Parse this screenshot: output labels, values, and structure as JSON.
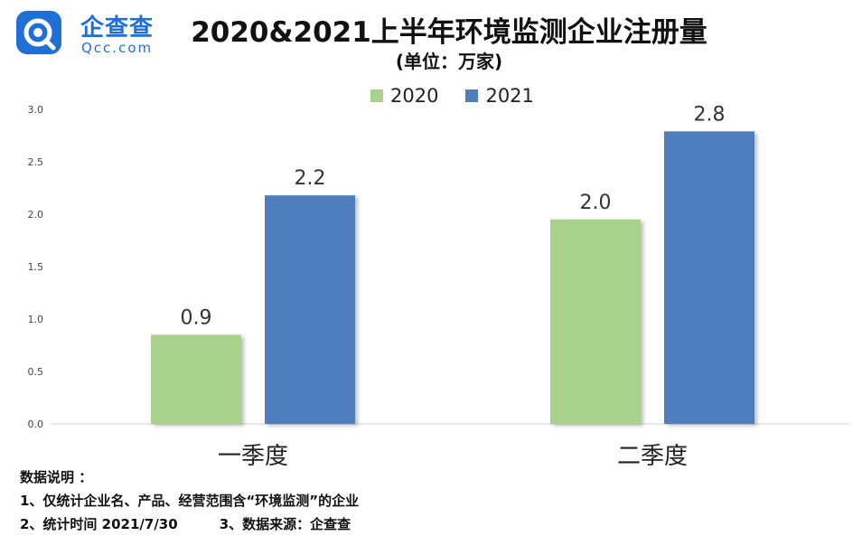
{
  "brand": {
    "name": "企查查",
    "domain": "Qcc.com",
    "color": "#1f6fd6"
  },
  "chart_data": {
    "type": "bar",
    "title": "2020&2021上半年环境监测企业注册量",
    "subtitle": "(单位：万家)",
    "categories": [
      "一季度",
      "二季度"
    ],
    "series": [
      {
        "name": "2020",
        "values": [
          0.85,
          1.95
        ],
        "labels": [
          "0.9",
          "2.0"
        ],
        "color": "#a9d18e"
      },
      {
        "name": "2021",
        "values": [
          2.18,
          2.79
        ],
        "labels": [
          "2.2",
          "2.8"
        ],
        "color": "#4f7ebd"
      }
    ],
    "ylim": [
      0,
      3.0
    ],
    "yticks": [
      "0.0",
      "0.5",
      "1.0",
      "1.5",
      "2.0",
      "2.5",
      "3.0"
    ],
    "legend_position": "top-center",
    "grid": false
  },
  "notes": {
    "heading": "数据说明 ：",
    "line1": "1、仅统计企业名、产品、经营范围含“环境监测”的企业",
    "line2a": "2、统计时间 2021/7/30",
    "line2b": "3、数据来源：企查查"
  }
}
